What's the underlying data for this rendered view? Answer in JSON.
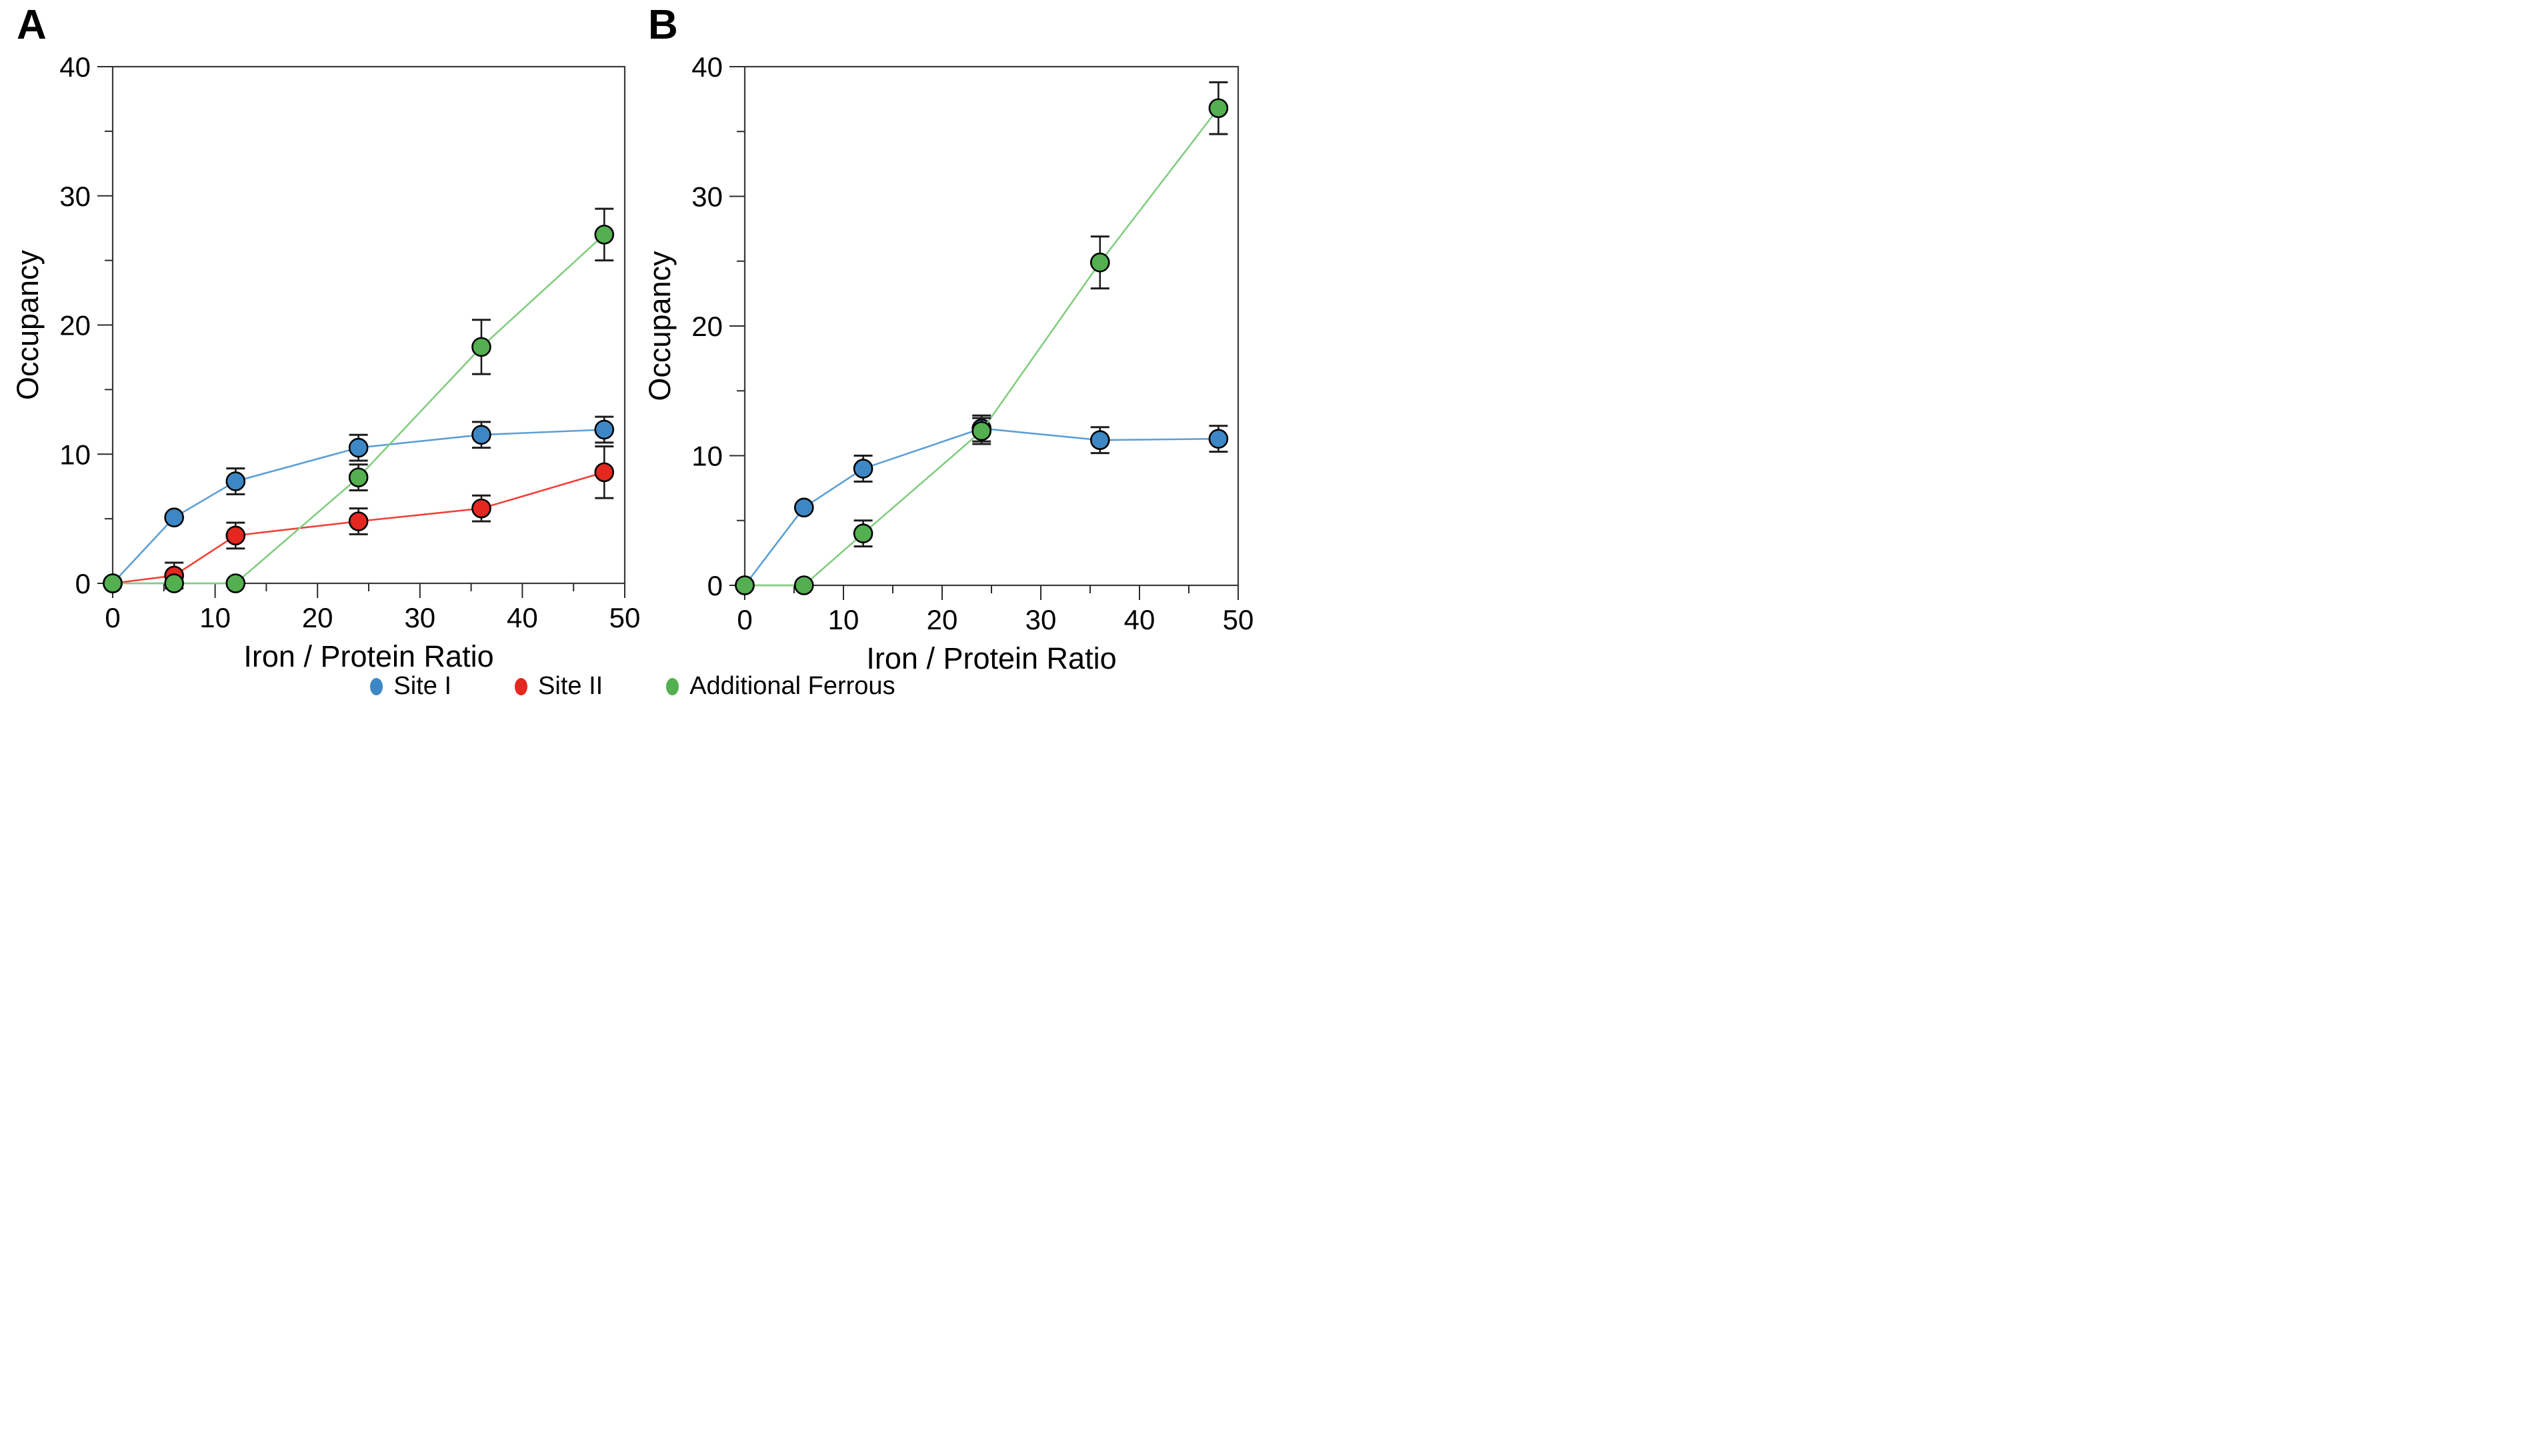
{
  "page": {
    "background": "#FFFFFF"
  },
  "panels": [
    {
      "label": "A"
    },
    {
      "label": "B"
    }
  ],
  "legend": {
    "items": [
      {
        "label": "Site I",
        "color": "#3D87C5"
      },
      {
        "label": "Site II",
        "color": "#E4271F"
      },
      {
        "label": "Additional Ferrous",
        "color": "#53AF50"
      }
    ]
  },
  "style_colors": {
    "spine": "#3A3A3A",
    "tick": "#2B2B2B",
    "error_bar": "#1C1C1C",
    "text": "#000000"
  },
  "chart_data": [
    {
      "type": "line",
      "panel": "A",
      "title": "",
      "xlabel": "Iron / Protein Ratio",
      "ylabel": "Occupancy",
      "xlim": [
        0,
        50
      ],
      "ylim": [
        0,
        40
      ],
      "x_major_ticks": [
        0,
        10,
        20,
        30,
        40,
        50
      ],
      "y_major_ticks": [
        0,
        10,
        20,
        30,
        40
      ],
      "minor_tick_step": 5,
      "grid": false,
      "legend_position": "bottom-shared",
      "x": [
        0,
        6,
        12,
        24,
        36,
        48
      ],
      "series": [
        {
          "name": "Site I",
          "marker_color": "#3D87C5",
          "line_color": "#5C9FD6",
          "values": [
            0,
            5.1,
            7.9,
            10.5,
            11.5,
            11.9
          ],
          "errors": [
            0,
            0,
            1.0,
            1.0,
            1.0,
            1.0
          ]
        },
        {
          "name": "Site II",
          "marker_color": "#E4271F",
          "line_color": "#F04137",
          "values": [
            0,
            0.6,
            3.7,
            4.8,
            5.8,
            8.6
          ],
          "errors": [
            0,
            1.0,
            1.0,
            1.0,
            1.0,
            2.0
          ]
        },
        {
          "name": "Additional Ferrous",
          "marker_color": "#53AF50",
          "line_color": "#83CD80",
          "values": [
            0,
            0,
            0,
            8.2,
            18.3,
            27.0
          ],
          "errors": [
            0,
            0,
            0,
            1.0,
            2.1,
            2.0
          ]
        }
      ]
    },
    {
      "type": "line",
      "panel": "B",
      "title": "",
      "xlabel": "Iron / Protein Ratio",
      "ylabel": "Occupancy",
      "xlim": [
        0,
        50
      ],
      "ylim": [
        0,
        40
      ],
      "x_major_ticks": [
        0,
        10,
        20,
        30,
        40,
        50
      ],
      "y_major_ticks": [
        0,
        10,
        20,
        30,
        40
      ],
      "minor_tick_step": 5,
      "grid": false,
      "legend_position": "bottom-shared",
      "x": [
        0,
        6,
        12,
        24,
        36,
        48
      ],
      "series": [
        {
          "name": "Site I",
          "marker_color": "#3D87C5",
          "line_color": "#5C9FD6",
          "values": [
            0,
            6.0,
            9.0,
            12.1,
            11.2,
            11.3
          ],
          "errors": [
            0,
            0,
            1.0,
            1.0,
            1.0,
            1.0
          ]
        },
        {
          "name": "Additional Ferrous",
          "marker_color": "#53AF50",
          "line_color": "#83CD80",
          "values": [
            0,
            0,
            4.0,
            11.9,
            24.9,
            36.8
          ],
          "errors": [
            0,
            0,
            1.0,
            1.0,
            2.0,
            2.0
          ]
        }
      ]
    }
  ]
}
